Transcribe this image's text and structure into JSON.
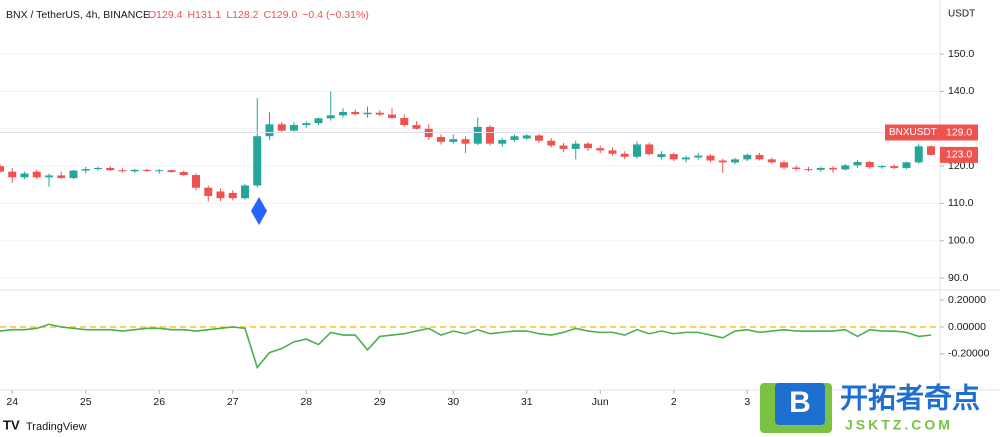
{
  "header": {
    "symbol": "BNX / TetherUS, 4h, BINANCE",
    "ohlc": [
      "O129.4",
      "H131.1",
      "L128.2",
      "C129.0"
    ],
    "change": "−0.4 (−0.31%)"
  },
  "axis_unit": "USDT",
  "branding": "TradingView",
  "watermark": {
    "name": "开拓者奇点",
    "site": "JSKTZ.COM",
    "logo": "B"
  },
  "chart_data": [
    {
      "type": "candlestick",
      "categories": [
        null,
        "24",
        null,
        null,
        null,
        null,
        null,
        "25",
        null,
        null,
        null,
        null,
        null,
        "26",
        null,
        null,
        null,
        null,
        null,
        "27",
        null,
        null,
        null,
        null,
        null,
        "28",
        null,
        null,
        null,
        null,
        null,
        "29",
        null,
        null,
        null,
        null,
        null,
        "30",
        null,
        null,
        null,
        null,
        null,
        "31",
        null,
        null,
        null,
        null,
        null,
        "Jun",
        null,
        null,
        null,
        null,
        null,
        "2",
        null,
        null,
        null,
        null,
        null,
        "3",
        null,
        null,
        null,
        null,
        null,
        null,
        null,
        null,
        null,
        null,
        null,
        null,
        null,
        null,
        null
      ],
      "open": [
        120,
        118.5,
        117,
        118.5,
        117,
        117.5,
        116.8,
        118.8,
        119.2,
        119.5,
        118.9,
        118.6,
        119,
        118.7,
        118.9,
        118.4,
        117.6,
        114.2,
        113.2,
        112.8,
        111.4,
        114.8,
        128,
        131.2,
        129.5,
        131,
        131.5,
        132.8,
        133.6,
        134.5,
        133.9,
        134.3,
        133.8,
        132.9,
        131,
        130,
        127.8,
        126.5,
        127.2,
        126,
        130.5,
        126,
        127,
        127.4,
        128.2,
        126.8,
        125.5,
        124.6,
        126,
        124.8,
        124.2,
        123.3,
        122.5,
        125.8,
        122.4,
        123.2,
        121.8,
        122.3,
        122.8,
        121.5,
        121,
        121.8,
        123,
        121.8,
        121,
        119.6,
        119.2,
        119,
        119.5,
        119.1,
        120.2,
        121.1,
        119.7,
        120,
        119.5,
        121,
        125.3
      ],
      "high": [
        120.5,
        119.5,
        118.5,
        119,
        118,
        118.5,
        119,
        119.8,
        119.8,
        120,
        119.4,
        119.2,
        119.3,
        119.2,
        119.1,
        118.8,
        118,
        114.8,
        114,
        113.5,
        115.2,
        138.2,
        134.5,
        131.8,
        131.8,
        132,
        133,
        140,
        135.5,
        135.2,
        136,
        135,
        135.5,
        133.8,
        132,
        131.2,
        128.5,
        128.5,
        128,
        133,
        131,
        127.5,
        128.5,
        128.6,
        128.6,
        127.5,
        126.2,
        126.8,
        126.5,
        125.5,
        125,
        124,
        126.6,
        126.3,
        124,
        123.6,
        122.8,
        123.5,
        123.2,
        122,
        122.2,
        123.4,
        123.5,
        122.3,
        121.5,
        120.2,
        119.8,
        119.8,
        120,
        120.6,
        121.6,
        121.4,
        120.3,
        120.4,
        121.2,
        126,
        125.6
      ],
      "low": [
        118.3,
        115.5,
        116.5,
        116.5,
        114.5,
        116.5,
        116.5,
        118,
        118.8,
        118.7,
        118.3,
        118.2,
        118.4,
        118,
        118.2,
        117.4,
        113.5,
        110.5,
        110.6,
        110.8,
        111,
        114.2,
        127,
        129,
        129.2,
        130.2,
        131,
        132.2,
        133,
        133.5,
        133,
        133.4,
        132.6,
        130.5,
        129.8,
        127,
        125.8,
        126,
        123.5,
        125.6,
        125.5,
        125.2,
        126.5,
        127,
        126.2,
        125,
        123.8,
        121.8,
        124,
        123.5,
        122.8,
        121.8,
        122,
        122.8,
        121.8,
        121.3,
        121,
        121.7,
        121,
        118.2,
        120.5,
        121.3,
        121.5,
        120.6,
        119.2,
        118.8,
        118.6,
        118.4,
        118.2,
        118.8,
        119.6,
        119.3,
        119.3,
        119.2,
        119.2,
        120.6,
        122.8
      ],
      "close": [
        118.5,
        117,
        118,
        117,
        117.5,
        116.8,
        118.8,
        119.2,
        119.5,
        118.9,
        118.6,
        119,
        118.7,
        118.9,
        118.4,
        117.6,
        114.2,
        112,
        111.4,
        111.4,
        114.8,
        128,
        131.2,
        129.5,
        131,
        131.5,
        132.8,
        133.6,
        134.5,
        133.9,
        134.3,
        133.8,
        132.9,
        131,
        130,
        127.8,
        126.5,
        127.2,
        126,
        130.5,
        126,
        127,
        128,
        128.2,
        126.8,
        125.5,
        124.6,
        126,
        124.8,
        124.2,
        123.3,
        122.5,
        125.8,
        123.2,
        123.2,
        121.8,
        122.3,
        122.8,
        121.5,
        121,
        121.8,
        123,
        121.8,
        121,
        119.6,
        119.2,
        119,
        119.5,
        119.1,
        120.2,
        121.1,
        119.7,
        120,
        119.5,
        121,
        125.3,
        123
      ],
      "up_color": "#26a69a",
      "down_color": "#ef5350",
      "ylim": [
        86.8,
        164.5
      ],
      "yticks": [
        {
          "value": 90,
          "label": "90.0"
        },
        {
          "value": 100,
          "label": "100.0"
        },
        {
          "value": 110,
          "label": "110.0"
        },
        {
          "value": 120,
          "label": "120.0"
        },
        {
          "value": 130,
          "label": "130.0"
        },
        {
          "value": 140,
          "label": "140.0"
        },
        {
          "value": 150,
          "label": "150.0"
        }
      ],
      "price_tags": [
        {
          "name": "BNXUSDT",
          "value": 129,
          "label": "129.0",
          "color": "#ef5350"
        },
        {
          "value": 123,
          "label": "123.0",
          "color": "#ef5350"
        }
      ]
    },
    {
      "type": "line",
      "values": [
        -0.03,
        -0.02,
        -0.02,
        -0.01,
        0.02,
        0,
        -0.01,
        -0.02,
        -0.02,
        -0.02,
        -0.03,
        -0.02,
        -0.01,
        -0.01,
        -0.02,
        -0.02,
        -0.03,
        -0.02,
        -0.01,
        0,
        -0.01,
        -0.3,
        -0.19,
        -0.16,
        -0.11,
        -0.09,
        -0.13,
        -0.04,
        -0.06,
        -0.06,
        -0.17,
        -0.07,
        -0.06,
        -0.05,
        -0.03,
        -0.01,
        -0.06,
        -0.03,
        -0.05,
        -0.02,
        -0.05,
        -0.04,
        -0.03,
        -0.03,
        -0.05,
        -0.06,
        -0.04,
        -0.01,
        -0.03,
        -0.04,
        -0.04,
        -0.06,
        -0.02,
        -0.05,
        -0.03,
        -0.05,
        -0.04,
        -0.04,
        -0.06,
        -0.08,
        -0.03,
        -0.02,
        -0.04,
        -0.03,
        -0.02,
        -0.03,
        -0.03,
        -0.03,
        -0.03,
        -0.02,
        -0.07,
        -0.02,
        -0.03,
        -0.03,
        -0.04,
        -0.07,
        -0.06
      ],
      "color": "#4caf50",
      "zero_line_color": "#f5c518",
      "ylim": [
        -0.467,
        0.274
      ],
      "yticks": [
        {
          "value": -0.2,
          "label": "-0.20000"
        },
        {
          "value": 0,
          "label": "0.00000"
        },
        {
          "value": 0.2,
          "label": "0.20000"
        }
      ]
    }
  ]
}
